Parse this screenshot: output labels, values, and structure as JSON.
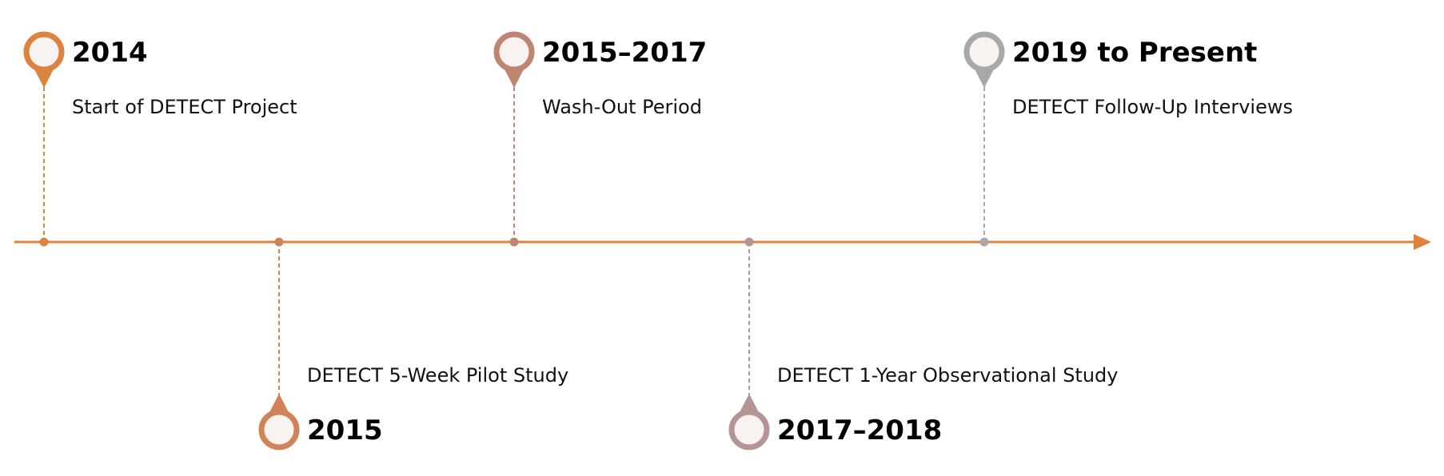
{
  "milestones": [
    {
      "year": "2014",
      "description": "Start of DETECT Project",
      "side": "above",
      "color": "#DC8340"
    },
    {
      "year": "2015",
      "description": "DETECT 5-Week Pilot Study",
      "side": "below",
      "color": "#D08358"
    },
    {
      "year": "2015–2017",
      "description": "Wash-Out Period",
      "side": "above",
      "color": "#BF8573"
    },
    {
      "year": "2017–2018",
      "description": "DETECT 1-Year Observational Study",
      "side": "below",
      "color": "#B39593"
    },
    {
      "year": "2019 to Present",
      "description": "DETECT Follow-Up Interviews",
      "side": "above",
      "color": "#A8A8A8"
    }
  ],
  "colors": {
    "axis": "#E0823D",
    "pin_inner": "#F8F3F1"
  }
}
